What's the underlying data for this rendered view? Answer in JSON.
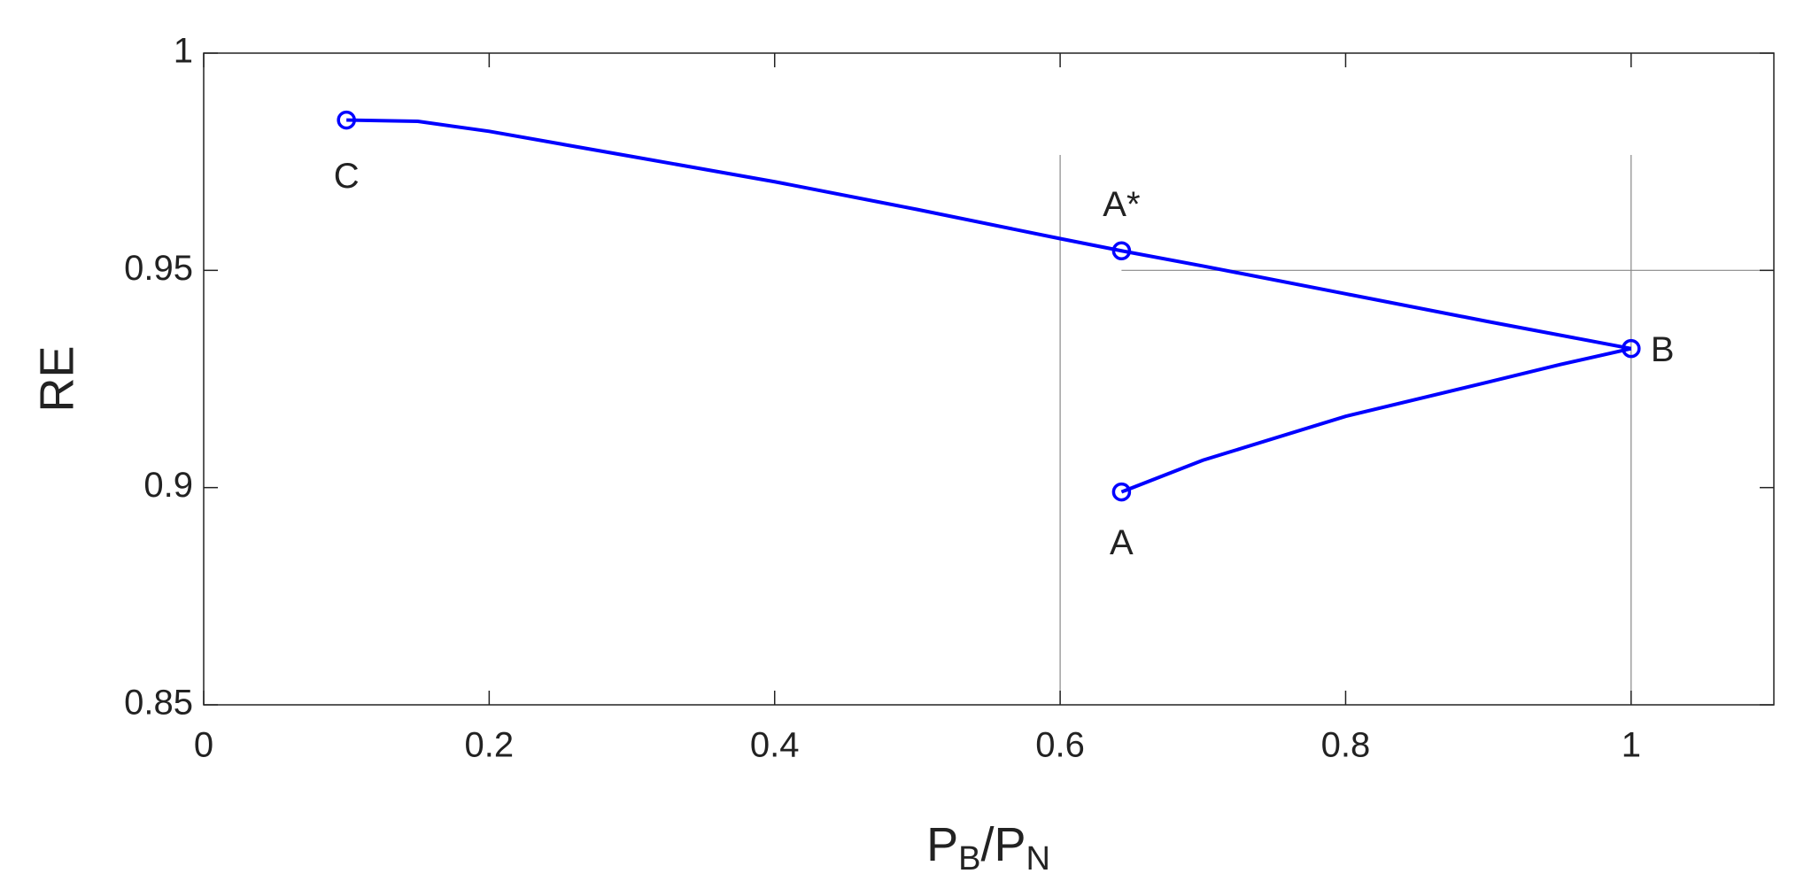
{
  "chart_data": {
    "type": "line",
    "xlabel": [
      "P",
      "B",
      "/P",
      "N"
    ],
    "ylabel": "RE",
    "series": [
      {
        "color": "#0000ff",
        "x": [
          0.1,
          0.15,
          0.2,
          0.3,
          0.4,
          0.5,
          0.6,
          0.643,
          0.7,
          0.8,
          0.9,
          1.0
        ],
        "values": [
          0.9846,
          0.9843,
          0.982,
          0.9762,
          0.9704,
          0.964,
          0.9573,
          0.9545,
          0.951,
          0.9446,
          0.9382,
          0.932
        ]
      },
      {
        "color": "#0000ff",
        "x": [
          0.643,
          0.7,
          0.8,
          0.9,
          0.95,
          1.0
        ],
        "values": [
          0.899,
          0.9063,
          0.9164,
          0.9243,
          0.9283,
          0.932
        ]
      }
    ],
    "points": [
      {
        "label": "C",
        "x": 0.1,
        "y": 0.9846
      },
      {
        "label": "A*",
        "x": 0.643,
        "y": 0.9545
      },
      {
        "label": "B",
        "x": 1.0,
        "y": 0.932
      },
      {
        "label": "A",
        "x": 0.643,
        "y": 0.899
      }
    ],
    "marker_color": "#0000ff",
    "reference_lines": {
      "x": [
        0.6,
        1.0
      ],
      "y": [
        0.95
      ],
      "color": "#888888"
    },
    "xlim": [
      0,
      1.1
    ],
    "ylim": [
      0.85,
      1
    ],
    "xticks": [
      0,
      0.2,
      0.4,
      0.6,
      0.8,
      1
    ],
    "yticks": [
      0.85,
      0.9,
      0.95,
      1
    ],
    "grid": false
  }
}
